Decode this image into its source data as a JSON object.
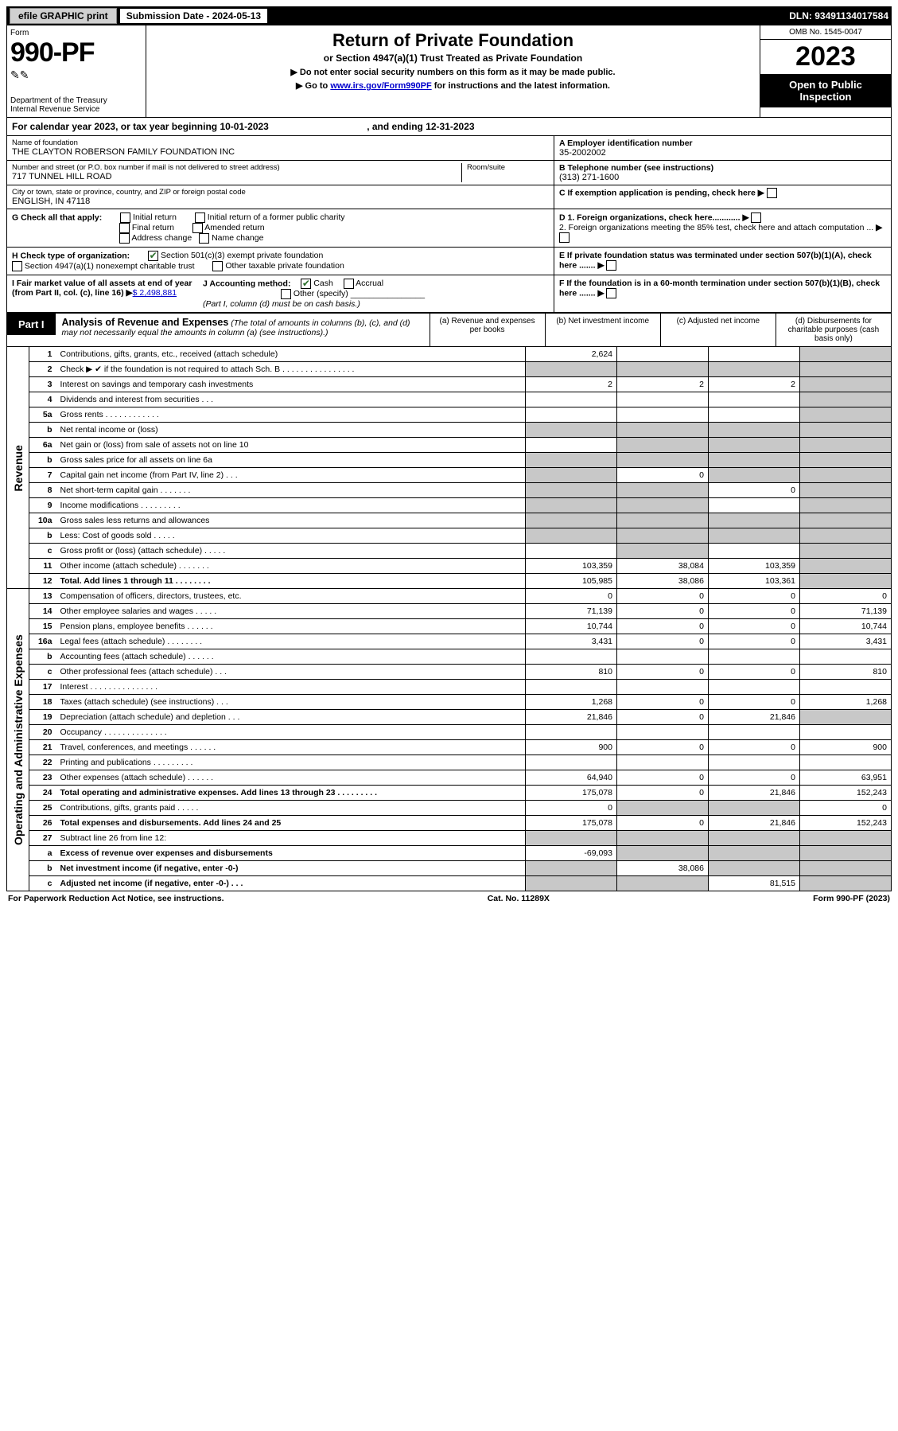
{
  "top_bar": {
    "efile": "efile GRAPHIC print",
    "sub_label": "Submission Date - 2024-05-13",
    "dln": "DLN: 93491134017584"
  },
  "header": {
    "form_label": "Form",
    "form_num": "990-PF",
    "dept": "Department of the Treasury",
    "irs": "Internal Revenue Service",
    "title": "Return of Private Foundation",
    "subtitle": "or Section 4947(a)(1) Trust Treated as Private Foundation",
    "note1": "▶ Do not enter social security numbers on this form as it may be made public.",
    "note2_pre": "▶ Go to ",
    "note2_link": "www.irs.gov/Form990PF",
    "note2_post": " for instructions and the latest information.",
    "omb": "OMB No. 1545-0047",
    "year": "2023",
    "open": "Open to Public Inspection"
  },
  "cal_year": {
    "pre": "For calendar year 2023, or tax year beginning ",
    "begin": "10-01-2023",
    "mid": " , and ending ",
    "end": "12-31-2023"
  },
  "entity": {
    "name_label": "Name of foundation",
    "name": "THE CLAYTON ROBERSON FAMILY FOUNDATION INC",
    "addr_label": "Number and street (or P.O. box number if mail is not delivered to street address)",
    "addr": "717 TUNNEL HILL ROAD",
    "room_label": "Room/suite",
    "city_label": "City or town, state or province, country, and ZIP or foreign postal code",
    "city": "ENGLISH, IN  47118",
    "ein_label": "A Employer identification number",
    "ein": "35-2002002",
    "tel_label": "B Telephone number (see instructions)",
    "tel": "(313) 271-1600",
    "c_label": "C If exemption application is pending, check here"
  },
  "checks": {
    "g_label": "G Check all that apply:",
    "g_opts": [
      "Initial return",
      "Initial return of a former public charity",
      "Final return",
      "Amended return",
      "Address change",
      "Name change"
    ],
    "d1": "D 1. Foreign organizations, check here............",
    "d2": "2. Foreign organizations meeting the 85% test, check here and attach computation ...",
    "h_label": "H Check type of organization:",
    "h1": "Section 501(c)(3) exempt private foundation",
    "h2": "Section 4947(a)(1) nonexempt charitable trust",
    "h3": "Other taxable private foundation",
    "e_label": "E If private foundation status was terminated under section 507(b)(1)(A), check here .......",
    "i_label": "I Fair market value of all assets at end of year (from Part II, col. (c), line 16) ",
    "i_val": "$  2,498,881",
    "j_label": "J Accounting method:",
    "j_cash": "Cash",
    "j_accr": "Accrual",
    "j_other": "Other (specify)",
    "j_note": "(Part I, column (d) must be on cash basis.)",
    "f_label": "F  If the foundation is in a 60-month termination under section 507(b)(1)(B), check here ......."
  },
  "part1": {
    "label": "Part I",
    "title": "Analysis of Revenue and Expenses",
    "sub": " (The total of amounts in columns (b), (c), and (d) may not necessarily equal the amounts in column (a) (see instructions).)",
    "cols": {
      "a": "(a) Revenue and expenses per books",
      "b": "(b) Net investment income",
      "c": "(c) Adjusted net income",
      "d": "(d) Disbursements for charitable purposes (cash basis only)"
    }
  },
  "section_labels": {
    "revenue": "Revenue",
    "expenses": "Operating and Administrative Expenses"
  },
  "rows": [
    {
      "n": "1",
      "d": "Contributions, gifts, grants, etc., received (attach schedule)",
      "a": "2,624",
      "b": "",
      "c": "",
      "dgrey": true
    },
    {
      "n": "2",
      "d": "Check ▶ ✔ if the foundation is not required to attach Sch. B  .  .  .  .  .  .  .  .  .  .  .  .  .  .  .  .",
      "allgrey": true
    },
    {
      "n": "3",
      "d": "Interest on savings and temporary cash investments",
      "a": "2",
      "b": "2",
      "c": "2",
      "dgrey": true
    },
    {
      "n": "4",
      "d": "Dividends and interest from securities  .  .  .",
      "a": "",
      "b": "",
      "c": "",
      "dgrey": true
    },
    {
      "n": "5a",
      "d": "Gross rents  .  .  .  .  .  .  .  .  .  .  .  .",
      "a": "",
      "b": "",
      "c": "",
      "dgrey": true
    },
    {
      "n": "b",
      "d": "Net rental income or (loss)  ",
      "allgrey": true
    },
    {
      "n": "6a",
      "d": "Net gain or (loss) from sale of assets not on line 10",
      "a": "",
      "bgrey": true,
      "cgrey": true,
      "dgrey": true
    },
    {
      "n": "b",
      "d": "Gross sales price for all assets on line 6a",
      "allgrey": true
    },
    {
      "n": "7",
      "d": "Capital gain net income (from Part IV, line 2)  .  .  .",
      "agrey": true,
      "b": "0",
      "cgrey": true,
      "dgrey": true
    },
    {
      "n": "8",
      "d": "Net short-term capital gain  .  .  .  .  .  .  .",
      "agrey": true,
      "bgrey": true,
      "c": "0",
      "dgrey": true
    },
    {
      "n": "9",
      "d": "Income modifications  .  .  .  .  .  .  .  .  .",
      "agrey": true,
      "bgrey": true,
      "c": "",
      "dgrey": true
    },
    {
      "n": "10a",
      "d": "Gross sales less returns and allowances",
      "allgrey": true
    },
    {
      "n": "b",
      "d": "Less: Cost of goods sold  .  .  .  .  .",
      "allgrey": true
    },
    {
      "n": "c",
      "d": "Gross profit or (loss) (attach schedule)  .  .  .  .  .",
      "a": "",
      "bgrey": true,
      "c": "",
      "dgrey": true
    },
    {
      "n": "11",
      "d": "Other income (attach schedule)  .  .  .  .  .  .  .",
      "a": "103,359",
      "b": "38,084",
      "c": "103,359",
      "dgrey": true
    },
    {
      "n": "12",
      "d": "Total. Add lines 1 through 11  .  .  .  .  .  .  .  .",
      "a": "105,985",
      "b": "38,086",
      "c": "103,361",
      "dgrey": true,
      "bold": true
    },
    {
      "n": "13",
      "d": "Compensation of officers, directors, trustees, etc.",
      "a": "0",
      "b": "0",
      "c": "0",
      "dv": "0"
    },
    {
      "n": "14",
      "d": "Other employee salaries and wages  .  .  .  .  .",
      "a": "71,139",
      "b": "0",
      "c": "0",
      "dv": "71,139"
    },
    {
      "n": "15",
      "d": "Pension plans, employee benefits  .  .  .  .  .  .",
      "a": "10,744",
      "b": "0",
      "c": "0",
      "dv": "10,744"
    },
    {
      "n": "16a",
      "d": "Legal fees (attach schedule)  .  .  .  .  .  .  .  .",
      "a": "3,431",
      "b": "0",
      "c": "0",
      "dv": "3,431"
    },
    {
      "n": "b",
      "d": "Accounting fees (attach schedule)  .  .  .  .  .  .",
      "a": "",
      "b": "",
      "c": "",
      "dv": ""
    },
    {
      "n": "c",
      "d": "Other professional fees (attach schedule)  .  .  .",
      "a": "810",
      "b": "0",
      "c": "0",
      "dv": "810"
    },
    {
      "n": "17",
      "d": "Interest .  .  .  .  .  .  .  .  .  .  .  .  .  .  .",
      "a": "",
      "b": "",
      "c": "",
      "dv": ""
    },
    {
      "n": "18",
      "d": "Taxes (attach schedule) (see instructions)  .  .  .",
      "a": "1,268",
      "b": "0",
      "c": "0",
      "dv": "1,268"
    },
    {
      "n": "19",
      "d": "Depreciation (attach schedule) and depletion  .  .  .",
      "a": "21,846",
      "b": "0",
      "c": "21,846",
      "dgrey": true
    },
    {
      "n": "20",
      "d": "Occupancy  .  .  .  .  .  .  .  .  .  .  .  .  .  .",
      "a": "",
      "b": "",
      "c": "",
      "dv": ""
    },
    {
      "n": "21",
      "d": "Travel, conferences, and meetings  .  .  .  .  .  .",
      "a": "900",
      "b": "0",
      "c": "0",
      "dv": "900"
    },
    {
      "n": "22",
      "d": "Printing and publications  .  .  .  .  .  .  .  .  .",
      "a": "",
      "b": "",
      "c": "",
      "dv": ""
    },
    {
      "n": "23",
      "d": "Other expenses (attach schedule)  .  .  .  .  .  .",
      "a": "64,940",
      "b": "0",
      "c": "0",
      "dv": "63,951"
    },
    {
      "n": "24",
      "d": "Total operating and administrative expenses. Add lines 13 through 23  .  .  .  .  .  .  .  .  .",
      "a": "175,078",
      "b": "0",
      "c": "21,846",
      "dv": "152,243",
      "bold": true
    },
    {
      "n": "25",
      "d": "Contributions, gifts, grants paid  .  .  .  .  .",
      "a": "0",
      "bgrey": true,
      "cgrey": true,
      "dv": "0"
    },
    {
      "n": "26",
      "d": "Total expenses and disbursements. Add lines 24 and 25",
      "a": "175,078",
      "b": "0",
      "c": "21,846",
      "dv": "152,243",
      "bold": true
    },
    {
      "n": "27",
      "d": "Subtract line 26 from line 12:",
      "allgrey": true
    },
    {
      "n": "a",
      "d": "Excess of revenue over expenses and disbursements",
      "a": "-69,093",
      "bgrey": true,
      "cgrey": true,
      "dgrey": true,
      "bold": true
    },
    {
      "n": "b",
      "d": "Net investment income (if negative, enter -0-)",
      "agrey": true,
      "b": "38,086",
      "cgrey": true,
      "dgrey": true,
      "bold": true
    },
    {
      "n": "c",
      "d": "Adjusted net income (if negative, enter -0-)  .  .  .",
      "agrey": true,
      "bgrey": true,
      "c": "81,515",
      "dgrey": true,
      "bold": true
    }
  ],
  "footer": {
    "left": "For Paperwork Reduction Act Notice, see instructions.",
    "mid": "Cat. No. 11289X",
    "right": "Form 990-PF (2023)"
  },
  "colors": {
    "grey": "#c8c8c8",
    "link": "#0000cc",
    "check_green": "#2a6e2a"
  }
}
